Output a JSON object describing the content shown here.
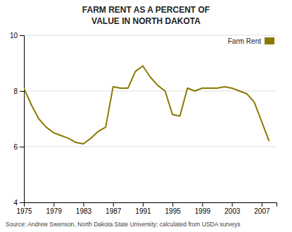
{
  "chart_data": {
    "type": "line",
    "title": "FARM RENT AS A PERCENT OF",
    "subtitle": "VALUE IN NORTH DAKOTA",
    "annotations": [
      "Source: Andrew Swenson, North Dakota State University; calculated from USDA surveys"
    ],
    "x": [
      1975,
      1976,
      1977,
      1978,
      1979,
      1980,
      1981,
      1982,
      1983,
      1984,
      1985,
      1986,
      1987,
      1988,
      1989,
      1990,
      1991,
      1992,
      1993,
      1994,
      1995,
      1996,
      1997,
      1998,
      1999,
      2000,
      2001,
      2002,
      2003,
      2004,
      2005,
      2006,
      2007,
      2008
    ],
    "series": [
      {
        "name": "Farm Rent",
        "color": "#8B7A00",
        "values": [
          8.1,
          7.5,
          7.0,
          6.7,
          6.5,
          6.4,
          6.3,
          6.15,
          6.1,
          6.3,
          6.55,
          6.7,
          8.15,
          8.1,
          8.1,
          8.7,
          8.9,
          8.5,
          8.2,
          8.0,
          7.15,
          7.1,
          8.1,
          8.0,
          8.1,
          8.1,
          8.1,
          8.15,
          8.1,
          8.0,
          7.9,
          7.6,
          6.9,
          6.2
        ]
      }
    ],
    "xlim": [
      1975,
      2009
    ],
    "ylim": [
      4,
      10
    ],
    "xticks": [
      1975,
      1979,
      1983,
      1987,
      1991,
      1995,
      1999,
      2003,
      2007
    ],
    "yticks": [
      4,
      6,
      8,
      10
    ],
    "grid": true,
    "legend": "top-right"
  }
}
